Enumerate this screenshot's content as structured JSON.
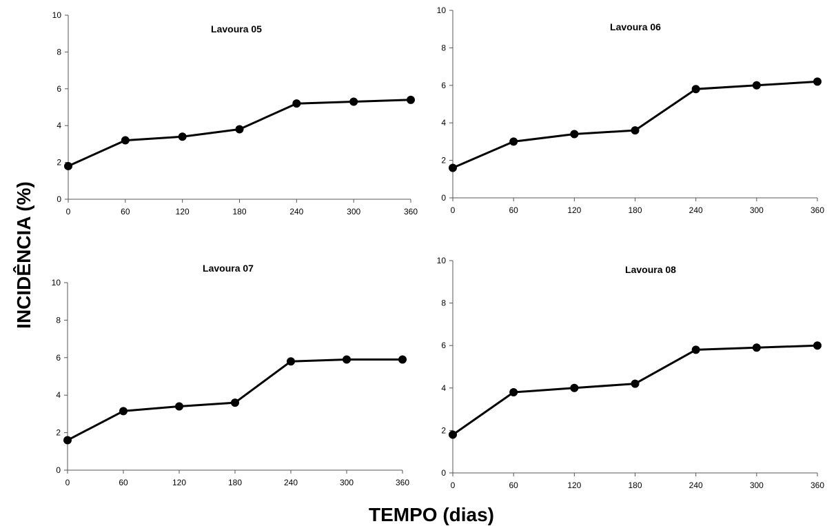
{
  "figure": {
    "ylabel": "INCIDÊNCIA  (%)",
    "xlabel": "TEMPO (dias)"
  },
  "chart_data": [
    {
      "type": "line",
      "title": "Lavoura 05",
      "x": [
        0,
        60,
        120,
        180,
        240,
        300,
        360
      ],
      "series": [
        {
          "values": [
            1.8,
            3.2,
            3.4,
            3.8,
            5.2,
            5.3,
            5.4
          ]
        }
      ],
      "xticks": [
        "0",
        "60",
        "120",
        "180",
        "240",
        "300",
        "360"
      ],
      "yticks": [
        "0",
        "2",
        "4",
        "6",
        "8",
        "10"
      ],
      "xlim": [
        0,
        360
      ],
      "ylim": [
        0,
        10
      ],
      "grid": false,
      "marker": "circle",
      "line_color": "#000000"
    },
    {
      "type": "line",
      "title": "Lavoura 06",
      "x": [
        0,
        60,
        120,
        180,
        240,
        300,
        360
      ],
      "series": [
        {
          "values": [
            1.6,
            3.0,
            3.4,
            3.6,
            5.8,
            6.0,
            6.2
          ]
        }
      ],
      "xticks": [
        "0",
        "60",
        "120",
        "180",
        "240",
        "300",
        "360"
      ],
      "yticks": [
        "0",
        "2",
        "4",
        "6",
        "8",
        "10"
      ],
      "xlim": [
        0,
        360
      ],
      "ylim": [
        0,
        10
      ],
      "grid": false,
      "marker": "circle",
      "line_color": "#000000"
    },
    {
      "type": "line",
      "title": "Lavoura 07",
      "x": [
        0,
        60,
        120,
        180,
        240,
        300,
        360
      ],
      "series": [
        {
          "values": [
            1.6,
            3.15,
            3.4,
            3.6,
            5.8,
            5.9,
            5.9
          ]
        }
      ],
      "xticks": [
        "0",
        "60",
        "120",
        "180",
        "240",
        "300",
        "360"
      ],
      "yticks": [
        "0",
        "2",
        "4",
        "6",
        "8",
        "10"
      ],
      "xlim": [
        0,
        360
      ],
      "ylim": [
        0,
        10
      ],
      "grid": false,
      "marker": "circle",
      "line_color": "#000000"
    },
    {
      "type": "line",
      "title": "Lavoura 08",
      "x": [
        0,
        60,
        120,
        180,
        240,
        300,
        360
      ],
      "series": [
        {
          "values": [
            1.8,
            3.8,
            4.0,
            4.2,
            5.8,
            5.9,
            6.0
          ]
        }
      ],
      "xticks": [
        "0",
        "60",
        "120",
        "180",
        "240",
        "300",
        "360"
      ],
      "yticks": [
        "0",
        "2",
        "4",
        "6",
        "8",
        "10"
      ],
      "xlim": [
        0,
        360
      ],
      "ylim": [
        0,
        10
      ],
      "grid": false,
      "marker": "circle",
      "line_color": "#000000"
    }
  ]
}
